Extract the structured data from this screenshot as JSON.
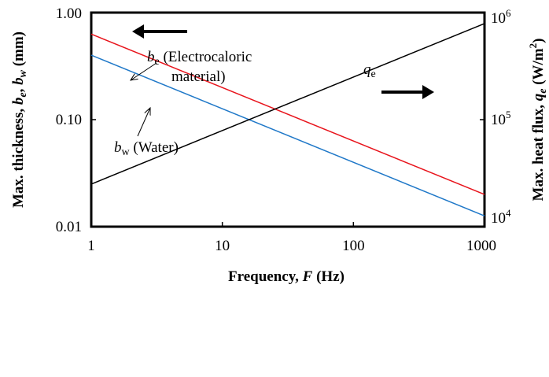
{
  "chart_data": {
    "type": "line",
    "x_scale": "log",
    "y_scale": "log",
    "y2_scale": "log",
    "xlim": [
      1,
      1000
    ],
    "ylim": [
      0.01,
      1.0
    ],
    "y2lim": [
      10000,
      1000000
    ],
    "grid": false,
    "xticks": [
      "1",
      "10",
      "100",
      "1000"
    ],
    "yticks": [
      "0.01",
      "0.10",
      "1.00"
    ],
    "y2ticks": [
      {
        "base": "10",
        "exp": "4"
      },
      {
        "base": "10",
        "exp": "5"
      },
      {
        "base": "10",
        "exp": "6"
      }
    ],
    "xlabel": {
      "text": "Frequency, ",
      "var": "F",
      "unit": " (Hz)"
    },
    "ylabel": {
      "prefix": "Max. thickness, ",
      "v1": "b",
      "s1": "e",
      "sep": ", ",
      "v2": "b",
      "s2": "w",
      "unit": " (mm)"
    },
    "y2label": {
      "prefix": "Max. heat flux, ",
      "v": "q",
      "s": "e",
      "unit_open": " (W/m",
      "unit_exp": "2",
      "unit_close": ")"
    },
    "series": [
      {
        "id": "be",
        "axis": "left",
        "color": "#e8141c",
        "x": [
          1,
          1000
        ],
        "y": [
          0.63,
          0.02
        ]
      },
      {
        "id": "bw",
        "axis": "left",
        "color": "#1f78c8",
        "x": [
          1,
          1000
        ],
        "y": [
          0.4,
          0.0126
        ]
      },
      {
        "id": "qe",
        "axis": "right",
        "color": "#000000",
        "x": [
          1,
          1000
        ],
        "y": [
          25000,
          790000
        ]
      }
    ],
    "annotations": {
      "be": {
        "var": "b",
        "sub": "e",
        "line1": " (Electrocaloric",
        "line2": "material)"
      },
      "bw": {
        "var": "b",
        "sub": "w",
        "text": " (Water)"
      },
      "qe": {
        "var": "q",
        "sub": "e"
      }
    },
    "colors": {
      "be": "#e8141c",
      "bw": "#1f78c8",
      "qe": "#000000",
      "axes": "#000000"
    }
  }
}
